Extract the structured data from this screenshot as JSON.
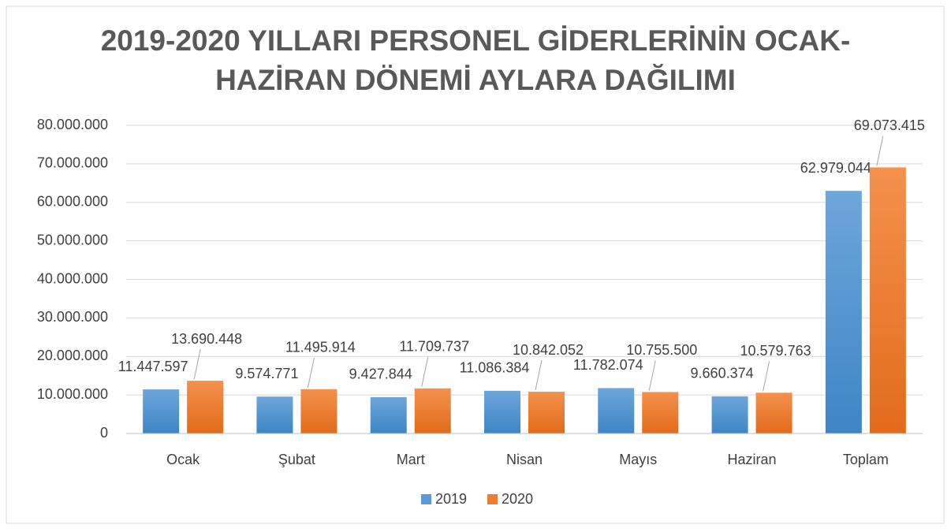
{
  "chart_data": {
    "type": "bar",
    "title": [
      "2019-2020 YILLARI PERSONEL GİDERLERİNİN OCAK-",
      "HAZİRAN DÖNEMİ AYLARA DAĞILIMI"
    ],
    "categories": [
      "Ocak",
      "Şubat",
      "Mart",
      "Nisan",
      "Mayıs",
      "Haziran",
      "Toplam"
    ],
    "series": [
      {
        "name": "2019",
        "color": "#5b9bd5",
        "values": [
          11447597,
          9574771,
          9427844,
          11086384,
          11782074,
          9660374,
          62979044
        ],
        "value_labels": [
          "11.447.597",
          "9.574.771",
          "9.427.844",
          "11.086.384",
          "11.782.074",
          "9.660.374",
          "62.979.044"
        ]
      },
      {
        "name": "2020",
        "color": "#ed7d31",
        "values": [
          13690448,
          11495914,
          11709737,
          10842052,
          10755500,
          10579763,
          69073415
        ],
        "value_labels": [
          "13.690.448",
          "11.495.914",
          "11.709.737",
          "10.842.052",
          "10.755.500",
          "10.579.763",
          "69.073.415"
        ]
      }
    ],
    "ylim": [
      0,
      80000000
    ],
    "yticks": [
      0,
      {
        "value": 10000000,
        "label": "10.000.000"
      },
      {
        "value": 20000000,
        "label": "20.000.000"
      },
      {
        "value": 30000000,
        "label": "30.000.000"
      },
      {
        "value": 40000000,
        "label": "40.000.000"
      },
      {
        "value": 50000000,
        "label": "50.000.000"
      },
      {
        "value": 60000000,
        "label": "60.000.000"
      },
      {
        "value": 70000000,
        "label": "70.000.000"
      },
      {
        "value": 80000000,
        "label": "80.000.000"
      }
    ],
    "grid": true,
    "legend": "bottom"
  }
}
